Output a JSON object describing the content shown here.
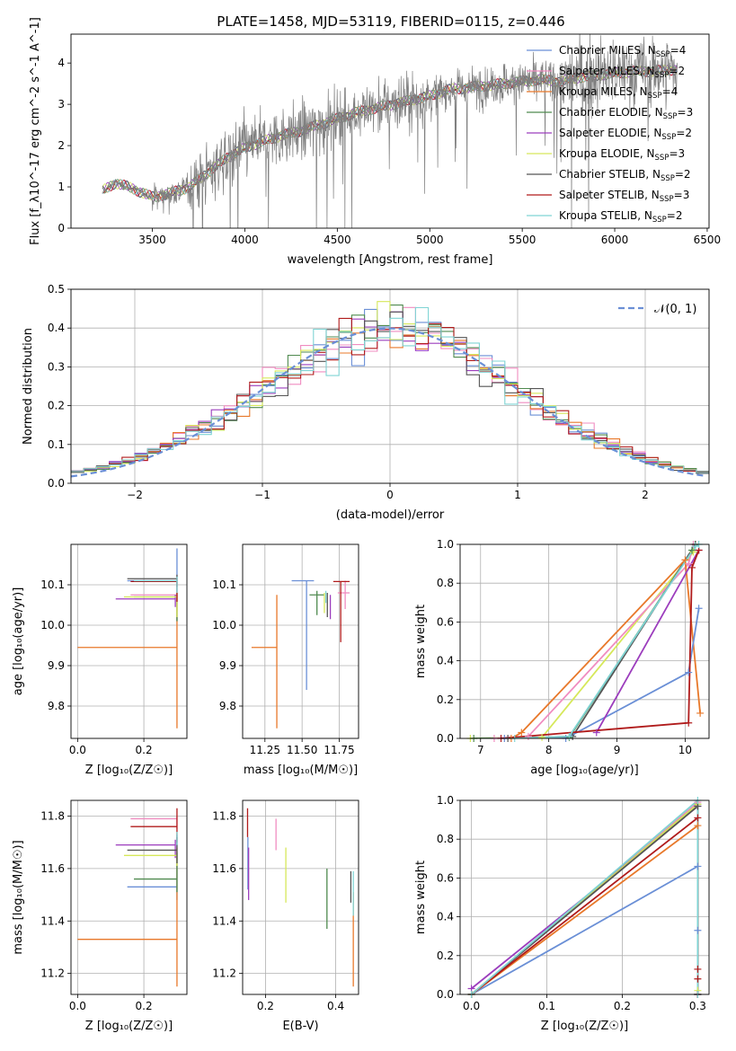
{
  "title": "PLATE=1458, MJD=53119, FIBERID=0115, z=0.446",
  "series_colors": {
    "Chabrier MILES": "#6a8fd6",
    "Salpeter MILES": "#f08cc0",
    "Kroupa MILES": "#e8782a",
    "Chabrier ELODIE": "#4f8a4f",
    "Salpeter ELODIE": "#9c3dbd",
    "Kroupa ELODIE": "#d6e85a",
    "Chabrier STELIB": "#555555",
    "Salpeter STELIB": "#b01b1b",
    "Kroupa STELIB": "#7fd4d4"
  },
  "chart_data": [
    {
      "id": "spectrum",
      "type": "line",
      "xlabel": "wavelength [Angstrom, rest frame]",
      "ylabel": "Flux [f_λ10^-17 erg cm^-2 s^-1 A^-1]",
      "xlim": [
        3060,
        6510
      ],
      "ylim": [
        0,
        4.7
      ],
      "xticks": [
        3500,
        4000,
        4500,
        5000,
        5500,
        6000,
        6500
      ],
      "yticks": [
        0,
        1,
        2,
        3,
        4
      ],
      "grid": false,
      "legend_position": "top-right",
      "data_range": [
        3230,
        6340
      ],
      "legend": [
        {
          "label": "Chabrier MILES, N",
          "sub": "SSP",
          "suffix": "=4"
        },
        {
          "label": "Salpeter MILES, N",
          "sub": "SSP",
          "suffix": "=2"
        },
        {
          "label": "Kroupa MILES, N",
          "sub": "SSP",
          "suffix": "=4"
        },
        {
          "label": "Chabrier ELODIE, N",
          "sub": "SSP",
          "suffix": "=3"
        },
        {
          "label": "Salpeter ELODIE, N",
          "sub": "SSP",
          "suffix": "=2"
        },
        {
          "label": "Kroupa ELODIE, N",
          "sub": "SSP",
          "suffix": "=3"
        },
        {
          "label": "Chabrier STELIB, N",
          "sub": "SSP",
          "suffix": "=2"
        },
        {
          "label": "Salpeter STELIB, N",
          "sub": "SSP",
          "suffix": "=3"
        },
        {
          "label": "Kroupa STELIB, N",
          "sub": "SSP",
          "suffix": "=2"
        }
      ],
      "continuum": {
        "x": [
          3230,
          3300,
          3400,
          3500,
          3600,
          3700,
          3800,
          3900,
          4000,
          4100,
          4200,
          4300,
          4400,
          4500,
          4600,
          4700,
          4800,
          4900,
          5000,
          5100,
          5200,
          5300,
          5400,
          5500,
          5600,
          5700,
          5800,
          5900,
          6000,
          6100,
          6200,
          6340
        ],
        "y": [
          0.9,
          1.1,
          0.95,
          0.75,
          0.85,
          1.0,
          1.35,
          1.7,
          1.95,
          2.1,
          2.25,
          2.35,
          2.5,
          2.65,
          2.8,
          2.9,
          3.0,
          3.1,
          3.2,
          3.35,
          3.4,
          3.45,
          3.5,
          3.55,
          3.6,
          3.55,
          3.65,
          3.7,
          3.75,
          3.8,
          3.8,
          3.85
        ]
      }
    },
    {
      "id": "residuals",
      "type": "histogram",
      "xlabel": "(data-model)/error",
      "ylabel": "Normed distribution",
      "xlim": [
        -2.5,
        2.5
      ],
      "ylim": [
        0,
        0.5
      ],
      "xticks": [
        -2,
        -1,
        0,
        1,
        2
      ],
      "yticks": [
        0.0,
        0.1,
        0.2,
        0.3,
        0.4,
        0.5
      ],
      "grid": true,
      "legend_position": "top-right",
      "legend_label": "𝒩(0, 1)",
      "bin_width": 0.1
    },
    {
      "id": "age_vs_Z",
      "type": "errorbar",
      "xlabel": "Z [log₁₀(Z/Z☉)]",
      "ylabel": "age  [log₁₀(age/yr)]",
      "xlim": [
        -0.02,
        0.33
      ],
      "ylim": [
        9.72,
        10.2
      ],
      "xticks": [
        0.0,
        0.2
      ],
      "yticks": [
        9.8,
        9.9,
        10.0,
        10.1
      ],
      "grid": true,
      "points": [
        {
          "series": "Chabrier MILES",
          "x": 0.3,
          "y": 10.11,
          "xerr": [
            0.15,
            0.0
          ],
          "yerr": [
            0.1,
            0.08
          ]
        },
        {
          "series": "Salpeter MILES",
          "x": 0.3,
          "y": 10.075,
          "xerr": [
            0.14,
            0.0
          ],
          "yerr": [
            0.04,
            0.01
          ]
        },
        {
          "series": "Kroupa MILES",
          "x": 0.3,
          "y": 9.945,
          "xerr": [
            0.3,
            0.0
          ],
          "yerr": [
            0.2,
            0.13
          ]
        },
        {
          "series": "Chabrier ELODIE",
          "x": 0.3,
          "y": 10.07,
          "xerr": [
            0.13,
            0.0
          ],
          "yerr": [
            0.06,
            0.01
          ]
        },
        {
          "series": "Salpeter ELODIE",
          "x": 0.295,
          "y": 10.065,
          "xerr": [
            0.18,
            0.0
          ],
          "yerr": [
            0.02,
            0.01
          ]
        },
        {
          "series": "Kroupa ELODIE",
          "x": 0.3,
          "y": 10.07,
          "xerr": [
            0.16,
            0.0
          ],
          "yerr": [
            0.05,
            0.01
          ]
        },
        {
          "series": "Chabrier STELIB",
          "x": 0.3,
          "y": 10.115,
          "xerr": [
            0.15,
            0.0
          ],
          "yerr": [
            0.02,
            0.01
          ]
        },
        {
          "series": "Salpeter STELIB",
          "x": 0.3,
          "y": 10.108,
          "xerr": [
            0.14,
            0.0
          ],
          "yerr": [
            0.05,
            0.01
          ]
        },
        {
          "series": "Kroupa STELIB",
          "x": 0.3,
          "y": 10.11,
          "xerr": [
            0.13,
            0.0
          ],
          "yerr": [
            0.03,
            0.01
          ]
        }
      ]
    },
    {
      "id": "age_vs_mass",
      "type": "errorbar",
      "xlabel": "mass [log₁₀(M/M☉)]",
      "ylabel": "",
      "xlim": [
        11.1,
        11.88
      ],
      "ylim": [
        9.72,
        10.2
      ],
      "xticks": [
        11.25,
        11.5,
        11.75
      ],
      "yticks": [
        9.8,
        9.9,
        10.0,
        10.1
      ],
      "grid": true,
      "points": [
        {
          "series": "Chabrier MILES",
          "x": 11.53,
          "y": 10.11,
          "xerr": [
            0.1,
            0.05
          ],
          "yerr": [
            0.27,
            0.0
          ]
        },
        {
          "series": "Salpeter MILES",
          "x": 11.79,
          "y": 10.08,
          "xerr": [
            0.05,
            0.03
          ],
          "yerr": [
            0.04,
            0.03
          ]
        },
        {
          "series": "Kroupa MILES",
          "x": 11.33,
          "y": 9.945,
          "xerr": [
            0.17,
            0.0
          ],
          "yerr": [
            0.2,
            0.13
          ]
        },
        {
          "series": "Chabrier ELODIE",
          "x": 11.6,
          "y": 10.075,
          "xerr": [
            0.05,
            0.05
          ],
          "yerr": [
            0.05,
            0.01
          ]
        },
        {
          "series": "Salpeter ELODIE",
          "x": 11.69,
          "y": 10.065,
          "xerr": [
            0.0,
            0.0
          ],
          "yerr": [
            0.05,
            0.01
          ]
        },
        {
          "series": "Kroupa ELODIE",
          "x": 11.65,
          "y": 10.07,
          "xerr": [
            0.0,
            0.0
          ],
          "yerr": [
            0.04,
            0.01
          ]
        },
        {
          "series": "Chabrier STELIB",
          "x": 11.67,
          "y": 10.06,
          "xerr": [
            0.0,
            0.0
          ],
          "yerr": [
            0.04,
            0.02
          ]
        },
        {
          "series": "Salpeter STELIB",
          "x": 11.76,
          "y": 10.108,
          "xerr": [
            0.05,
            0.06
          ],
          "yerr": [
            0.15,
            0.0
          ]
        },
        {
          "series": "Kroupa STELIB",
          "x": 11.66,
          "y": 10.075,
          "xerr": [
            0.0,
            0.0
          ],
          "yerr": [
            0.02,
            0.01
          ]
        }
      ]
    },
    {
      "id": "massweight_vs_age",
      "type": "line",
      "xlabel": "age  [log₁₀(age/yr)]",
      "ylabel": "mass weight",
      "xlim": [
        6.7,
        10.35
      ],
      "ylim": [
        0,
        1.0
      ],
      "xticks": [
        7,
        8,
        9,
        10
      ],
      "yticks": [
        0.0,
        0.2,
        0.4,
        0.6,
        0.8,
        1.0
      ],
      "grid": true,
      "series": [
        {
          "name": "Kroupa ELODIE",
          "x": [
            6.85,
            7.9,
            10.12,
            10.15
          ],
          "y": [
            0,
            0.005,
            0.96,
            1.0
          ]
        },
        {
          "name": "Chabrier ELODIE",
          "x": [
            6.9,
            8.3,
            10.1,
            10.15
          ],
          "y": [
            0,
            0.005,
            0.97,
            1.0
          ]
        },
        {
          "name": "Salpeter MILES",
          "x": [
            7.2,
            7.7,
            10.05,
            10.12
          ],
          "y": [
            0,
            0.01,
            0.9,
            1.0
          ]
        },
        {
          "name": "Chabrier STELIB",
          "x": [
            7.4,
            8.35,
            10.15
          ],
          "y": [
            0,
            0.01,
            1.0
          ]
        },
        {
          "name": "Kroupa MILES",
          "x": [
            7.45,
            7.6,
            10.0,
            10.22
          ],
          "y": [
            0,
            0.03,
            0.92,
            0.13
          ]
        },
        {
          "name": "Chabrier MILES",
          "x": [
            7.35,
            8.25,
            10.05,
            10.2
          ],
          "y": [
            0,
            0.0,
            0.34,
            0.67
          ]
        },
        {
          "name": "Salpeter ELODIE",
          "x": [
            8.7,
            10.2
          ],
          "y": [
            0.03,
            0.97
          ]
        },
        {
          "name": "Salpeter STELIB",
          "x": [
            7.3,
            10.05,
            10.1,
            10.2
          ],
          "y": [
            0,
            0.08,
            0.88,
            0.97
          ]
        },
        {
          "name": "Kroupa STELIB",
          "x": [
            7.5,
            8.3,
            10.15,
            10.2
          ],
          "y": [
            0,
            0.01,
            0.99,
            1.0
          ]
        }
      ]
    },
    {
      "id": "mass_vs_Z",
      "type": "errorbar",
      "xlabel": "Z [log₁₀(Z/Z☉)]",
      "ylabel": "mass [log₁₀(M/M☉)]",
      "xlim": [
        -0.02,
        0.33
      ],
      "ylim": [
        11.12,
        11.86
      ],
      "xticks": [
        0.0,
        0.2
      ],
      "yticks": [
        11.2,
        11.4,
        11.6,
        11.8
      ],
      "grid": true,
      "points": [
        {
          "series": "Chabrier MILES",
          "x": 0.3,
          "y": 11.53,
          "xerr": [
            0.15,
            0.0
          ],
          "yerr": [
            0.05,
            0.2
          ]
        },
        {
          "series": "Salpeter MILES",
          "x": 0.3,
          "y": 11.79,
          "xerr": [
            0.14,
            0.0
          ],
          "yerr": [
            0.04,
            0.01
          ]
        },
        {
          "series": "Kroupa MILES",
          "x": 0.3,
          "y": 11.33,
          "xerr": [
            0.3,
            0.0
          ],
          "yerr": [
            0.18,
            0.35
          ]
        },
        {
          "series": "Chabrier ELODIE",
          "x": 0.3,
          "y": 11.56,
          "xerr": [
            0.13,
            0.0
          ],
          "yerr": [
            0.05,
            0.1
          ]
        },
        {
          "series": "Salpeter ELODIE",
          "x": 0.295,
          "y": 11.69,
          "xerr": [
            0.18,
            0.0
          ],
          "yerr": [
            0.05,
            0.02
          ]
        },
        {
          "series": "Kroupa ELODIE",
          "x": 0.3,
          "y": 11.65,
          "xerr": [
            0.16,
            0.0
          ],
          "yerr": [
            0.04,
            0.01
          ]
        },
        {
          "series": "Chabrier STELIB",
          "x": 0.3,
          "y": 11.67,
          "xerr": [
            0.15,
            0.0
          ],
          "yerr": [
            0.05,
            0.05
          ]
        },
        {
          "series": "Salpeter STELIB",
          "x": 0.3,
          "y": 11.76,
          "xerr": [
            0.14,
            0.0
          ],
          "yerr": [
            0.06,
            0.07
          ]
        },
        {
          "series": "Kroupa STELIB",
          "x": 0.3,
          "y": 11.72,
          "xerr": [
            0.0,
            0.0
          ],
          "yerr": [
            0.03,
            0.02
          ]
        }
      ]
    },
    {
      "id": "mass_vs_EBV",
      "type": "errorbar",
      "xlabel": "E(B-V)",
      "ylabel": "",
      "xlim": [
        0.135,
        0.465
      ],
      "ylim": [
        11.12,
        11.86
      ],
      "xticks": [
        0.2,
        0.4
      ],
      "yticks": [
        11.2,
        11.4,
        11.6,
        11.8
      ],
      "grid": true,
      "points": [
        {
          "series": "Chabrier MILES",
          "x": 0.15,
          "y": 11.6,
          "xerr": [
            0.0,
            0.0
          ],
          "yerr": [
            0.08,
            0.12
          ]
        },
        {
          "series": "Salpeter MILES",
          "x": 0.23,
          "y": 11.73,
          "xerr": [
            0.0,
            0.0
          ],
          "yerr": [
            0.06,
            0.06
          ]
        },
        {
          "series": "Kroupa MILES",
          "x": 0.45,
          "y": 11.33,
          "xerr": [
            0.0,
            0.0
          ],
          "yerr": [
            0.18,
            0.18
          ]
        },
        {
          "series": "Chabrier ELODIE",
          "x": 0.375,
          "y": 11.49,
          "xerr": [
            0.0,
            0.0
          ],
          "yerr": [
            0.12,
            0.11
          ]
        },
        {
          "series": "Salpeter ELODIE",
          "x": 0.152,
          "y": 11.58,
          "xerr": [
            0.0,
            0.0
          ],
          "yerr": [
            0.1,
            0.1
          ]
        },
        {
          "series": "Kroupa ELODIE",
          "x": 0.258,
          "y": 11.57,
          "xerr": [
            0.0,
            0.0
          ],
          "yerr": [
            0.1,
            0.11
          ]
        },
        {
          "series": "Chabrier STELIB",
          "x": 0.443,
          "y": 11.55,
          "xerr": [
            0.0,
            0.0
          ],
          "yerr": [
            0.08,
            0.04
          ]
        },
        {
          "series": "Salpeter STELIB",
          "x": 0.149,
          "y": 11.76,
          "xerr": [
            0.0,
            0.0
          ],
          "yerr": [
            0.04,
            0.07
          ]
        },
        {
          "series": "Kroupa STELIB",
          "x": 0.45,
          "y": 11.5,
          "xerr": [
            0.0,
            0.0
          ],
          "yerr": [
            0.08,
            0.09
          ]
        }
      ]
    },
    {
      "id": "massweight_vs_Z",
      "type": "line",
      "xlabel": "Z [log₁₀(Z/Z☉)]",
      "ylabel": "mass weight",
      "xlim": [
        -0.015,
        0.315
      ],
      "ylim": [
        0,
        1.0
      ],
      "xticks": [
        0.0,
        0.1,
        0.2,
        0.3
      ],
      "yticks": [
        0.0,
        0.2,
        0.4,
        0.6,
        0.8,
        1.0
      ],
      "grid": true,
      "series": [
        {
          "name": "Chabrier MILES",
          "x": [
            0.0,
            0.3,
            0.3,
            0.3
          ],
          "y": [
            0.0,
            0.66,
            0.33,
            0.0
          ]
        },
        {
          "name": "Salpeter MILES",
          "x": [
            0.0,
            0.3,
            0.3
          ],
          "y": [
            0.0,
            0.99,
            0.0
          ]
        },
        {
          "name": "Kroupa MILES",
          "x": [
            0.0,
            0.3,
            0.3
          ],
          "y": [
            0.0,
            0.87,
            0.0
          ]
        },
        {
          "name": "Chabrier ELODIE",
          "x": [
            0.0,
            0.3,
            0.3
          ],
          "y": [
            0.0,
            0.98,
            0.0
          ]
        },
        {
          "name": "Salpeter ELODIE",
          "x": [
            0.0,
            0.3,
            0.3
          ],
          "y": [
            0.03,
            0.97,
            0.0
          ]
        },
        {
          "name": "Kroupa ELODIE",
          "x": [
            0.0,
            0.3,
            0.3
          ],
          "y": [
            0.0,
            0.98,
            0.02
          ]
        },
        {
          "name": "Chabrier STELIB",
          "x": [
            0.0,
            0.3,
            0.3
          ],
          "y": [
            0.0,
            0.97,
            0.0
          ]
        },
        {
          "name": "Salpeter STELIB",
          "x": [
            0.0,
            0.3,
            0.3,
            0.3,
            0.3
          ],
          "y": [
            0.0,
            0.91,
            0.13,
            0.08,
            0.0
          ]
        },
        {
          "name": "Kroupa STELIB",
          "x": [
            0.0,
            0.3,
            0.3
          ],
          "y": [
            0.0,
            1.0,
            0.0
          ]
        }
      ]
    }
  ]
}
